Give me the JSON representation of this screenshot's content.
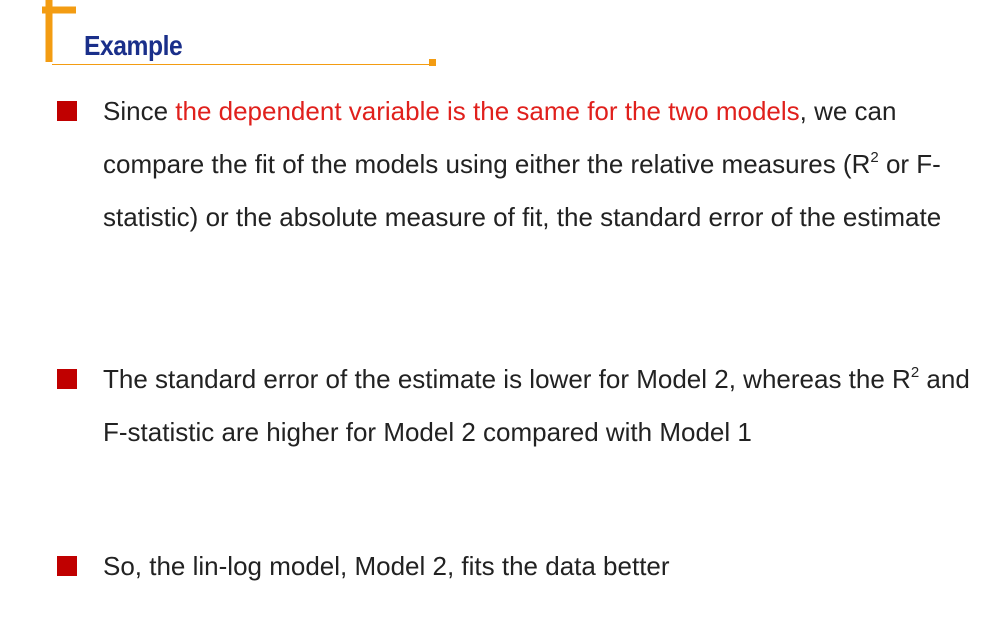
{
  "slide": {
    "title": "Example",
    "accent_color": "#f39c12",
    "title_color": "#1a2f8a",
    "bullet_color": "#c00000",
    "highlight_color": "#e0201c"
  },
  "bullets": [
    {
      "segments": [
        {
          "text": "Since "
        },
        {
          "text": "the dependent variable is the same for the two models",
          "highlight": true
        },
        {
          "text": ", we can compare the fit of the models using either the relative measures (R"
        },
        {
          "text": "2",
          "sup": true
        },
        {
          "text": " or F-statistic) or the absolute measure of fit, the standard error of the estimate"
        }
      ]
    },
    {
      "segments": [
        {
          "text": "The standard error of the estimate is lower for Model 2, whereas the R"
        },
        {
          "text": "2",
          "sup": true
        },
        {
          "text": " and F-statistic are higher for Model 2 compared with Model 1"
        }
      ]
    },
    {
      "segments": [
        {
          "text": "So, the lin-log model, Model 2, fits the data better"
        }
      ]
    }
  ]
}
